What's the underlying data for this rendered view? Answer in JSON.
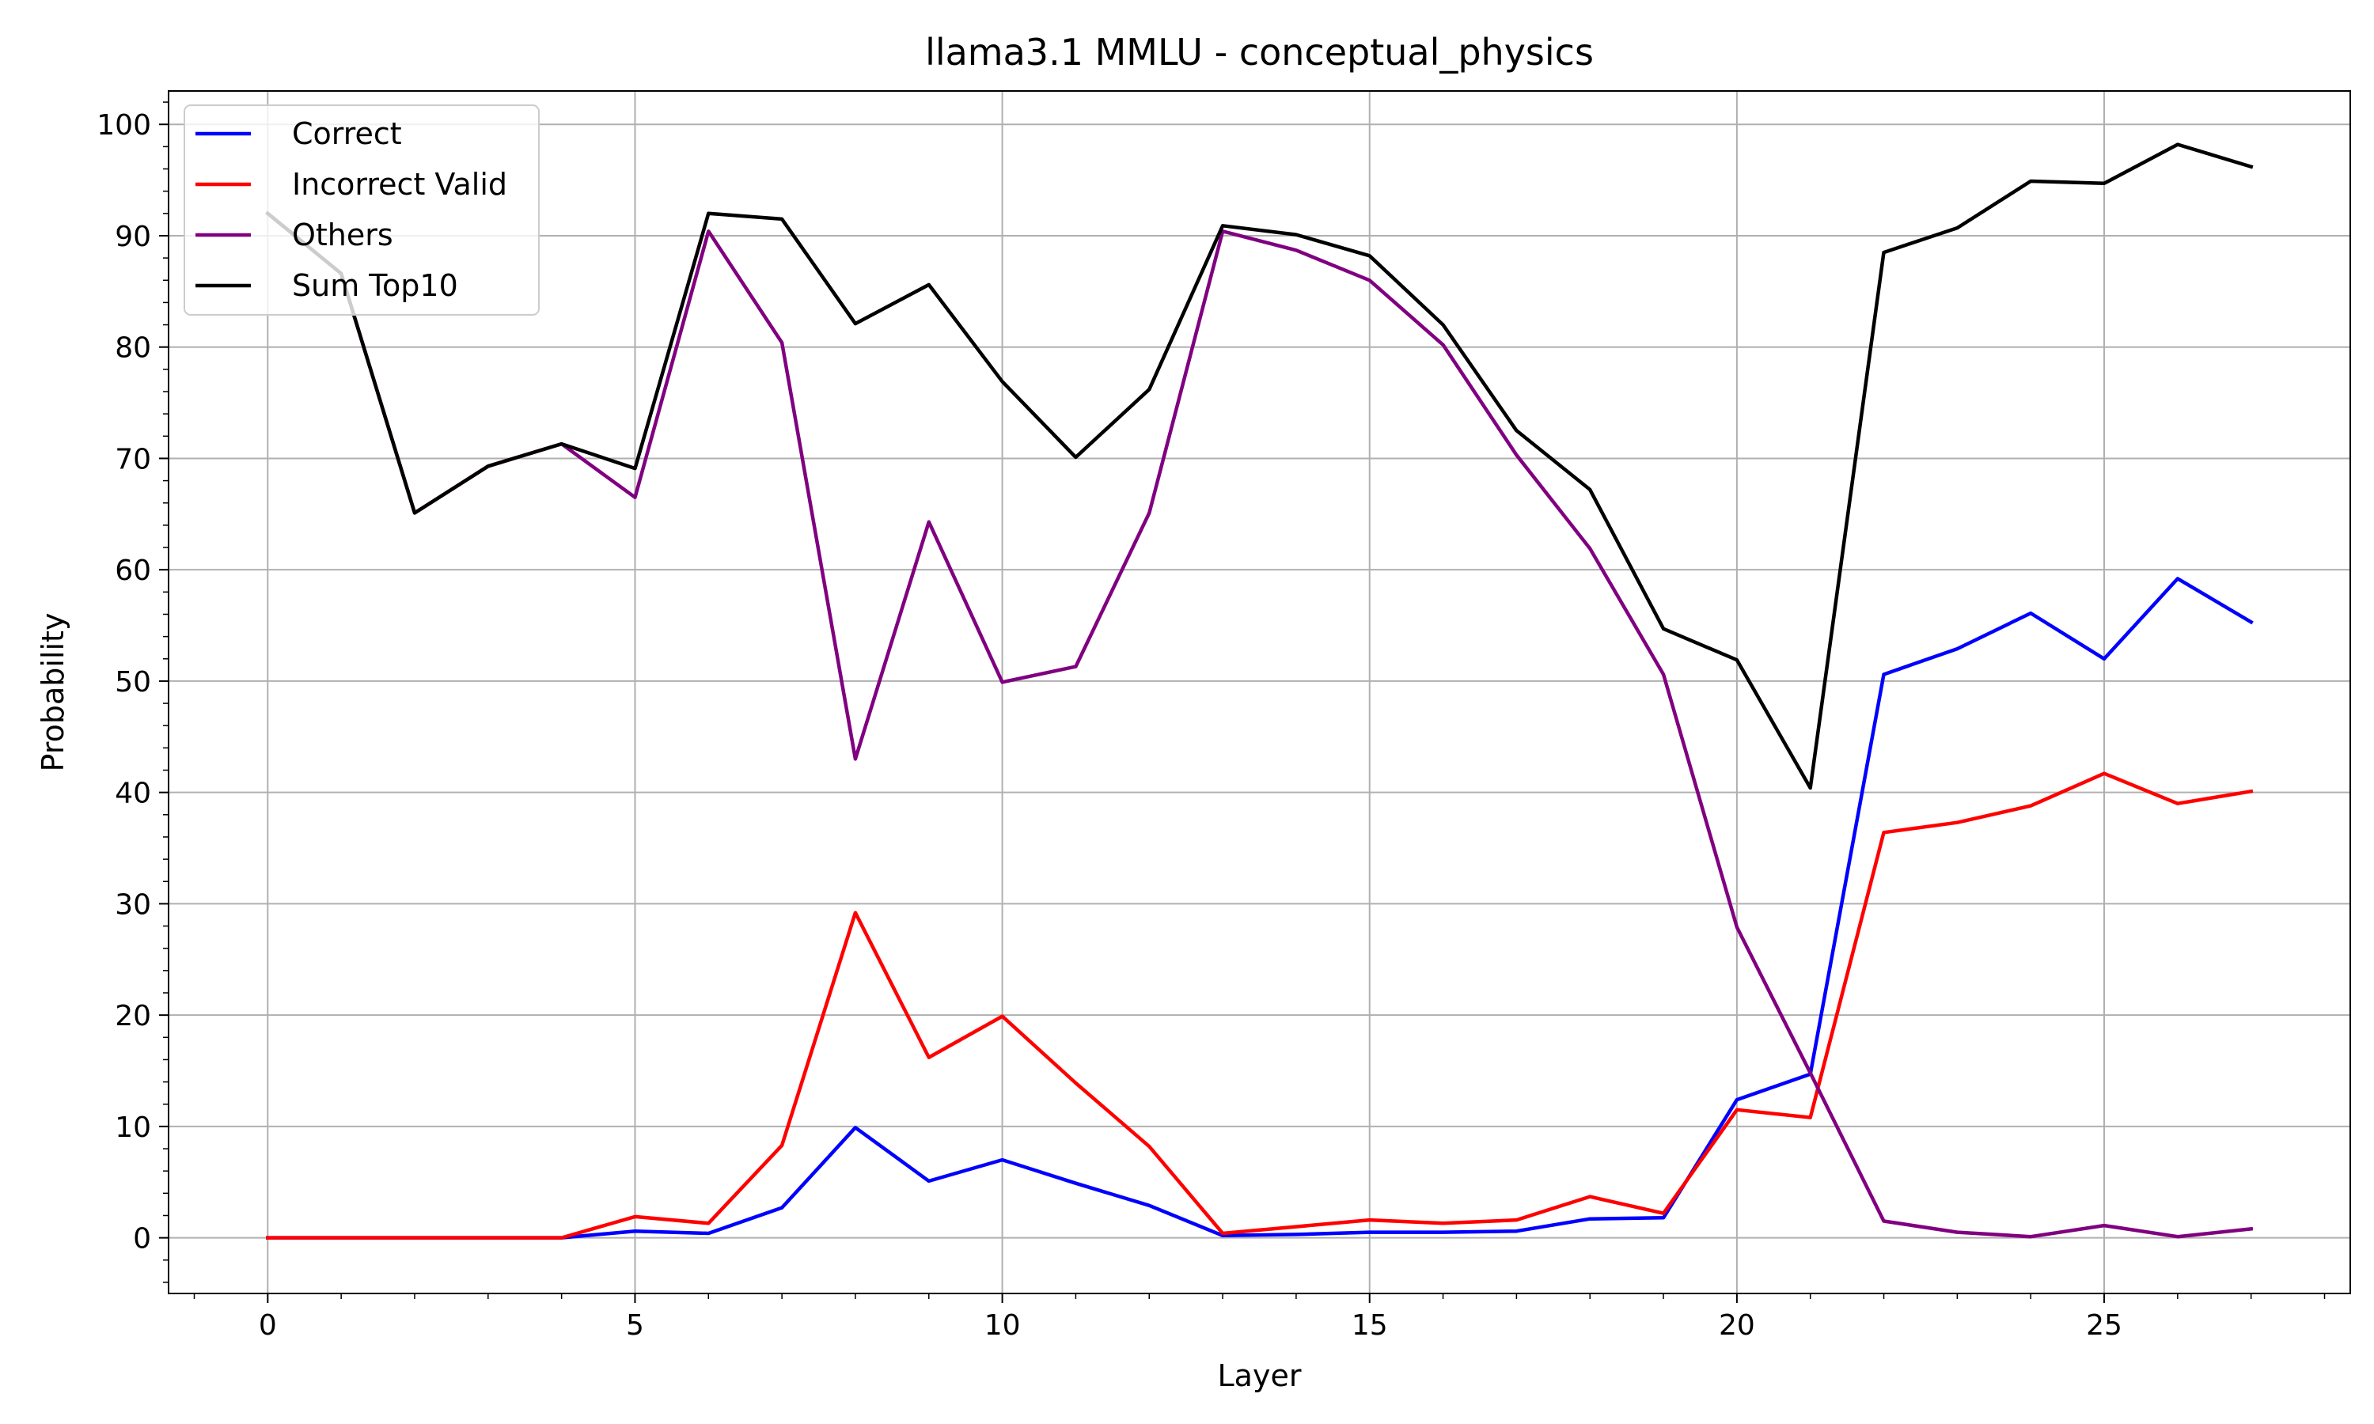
{
  "chart_data": {
    "type": "line",
    "title": "llama3.1 MMLU - conceptual_physics",
    "xlabel": "Layer",
    "ylabel": "Probability",
    "xlim": [
      -1.35,
      28.35
    ],
    "ylim": [
      -5,
      103
    ],
    "xticks": [
      0,
      5,
      10,
      15,
      20,
      25
    ],
    "yticks": [
      0,
      10,
      20,
      30,
      40,
      50,
      60,
      70,
      80,
      90,
      100
    ],
    "grid": true,
    "legend_position": "top-left",
    "x": [
      0,
      1,
      2,
      3,
      4,
      5,
      6,
      7,
      8,
      9,
      10,
      11,
      12,
      13,
      14,
      15,
      16,
      17,
      18,
      19,
      20,
      21,
      22,
      23,
      24,
      25,
      26,
      27
    ],
    "series": [
      {
        "name": "Correct",
        "color": "#0000ff",
        "values": [
          0,
          0,
          0,
          0,
          0,
          0.6,
          0.4,
          2.7,
          9.9,
          5.1,
          7.0,
          4.9,
          2.9,
          0.2,
          0.3,
          0.5,
          0.5,
          0.6,
          1.7,
          1.8,
          12.4,
          14.7,
          50.6,
          52.9,
          56.1,
          52.0,
          59.2,
          55.3
        ]
      },
      {
        "name": "Incorrect Valid",
        "color": "#ff0000",
        "values": [
          0,
          0,
          0,
          0,
          0,
          1.9,
          1.3,
          8.3,
          29.2,
          16.2,
          19.9,
          13.9,
          8.2,
          0.4,
          1.0,
          1.6,
          1.3,
          1.6,
          3.7,
          2.2,
          11.5,
          10.8,
          36.4,
          37.3,
          38.8,
          41.7,
          39.0,
          40.1
        ]
      },
      {
        "name": "Others",
        "color": "#800080",
        "values": [
          92.0,
          86.6,
          65.1,
          69.3,
          71.3,
          66.5,
          90.4,
          80.4,
          43.0,
          64.3,
          49.9,
          51.3,
          65.1,
          90.4,
          88.7,
          86.0,
          80.2,
          70.3,
          61.9,
          50.6,
          27.9,
          14.8,
          1.5,
          0.5,
          0.1,
          1.1,
          0.1,
          0.8
        ]
      },
      {
        "name": "Sum Top10",
        "color": "#000000",
        "values": [
          92.0,
          86.6,
          65.1,
          69.3,
          71.3,
          69.1,
          92.0,
          91.5,
          82.1,
          85.6,
          76.9,
          70.1,
          76.2,
          90.9,
          90.1,
          88.2,
          82.0,
          72.5,
          67.2,
          54.7,
          51.9,
          40.4,
          88.5,
          90.7,
          94.9,
          94.7,
          98.2,
          96.2
        ]
      }
    ]
  }
}
